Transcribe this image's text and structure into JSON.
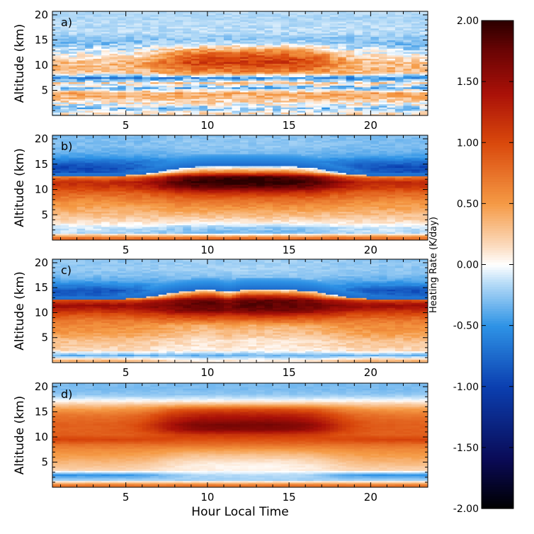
{
  "chart_data": {
    "type": "heatmap",
    "xlabel": "Hour Local Time",
    "ylabel": "Altitude (km)",
    "xlim": [
      0.5,
      23.5
    ],
    "ylim": [
      0,
      20.7
    ],
    "x_ticks": [
      5,
      10,
      15,
      20
    ],
    "y_ticks": [
      5,
      10,
      15,
      20
    ],
    "panels": [
      {
        "label": "a)",
        "layers": [
          {
            "alt": 0.5,
            "base": 0.08,
            "day": 0.0,
            "noise": 0.25
          },
          {
            "alt": 1.5,
            "base": -0.25,
            "day": 0.0,
            "noise": 0.25
          },
          {
            "alt": 2.5,
            "base": 0.05,
            "day": 0.05,
            "noise": 0.25
          },
          {
            "alt": 3.5,
            "base": 0.3,
            "day": 0.0,
            "noise": 0.2
          },
          {
            "alt": 4.5,
            "base": 0.45,
            "day": 0.0,
            "noise": 0.2
          },
          {
            "alt": 5.5,
            "base": -0.35,
            "day": 0.0,
            "noise": 0.3
          },
          {
            "alt": 6.5,
            "base": 0.15,
            "day": 0.05,
            "noise": 0.3
          },
          {
            "alt": 7.5,
            "base": -0.6,
            "day": 0.1,
            "noise": 0.25
          },
          {
            "alt": 8.5,
            "base": 0.25,
            "day": 0.3,
            "noise": 0.2
          },
          {
            "alt": 9.5,
            "base": 0.3,
            "day": 0.55,
            "noise": 0.2
          },
          {
            "alt": 10.5,
            "base": 0.3,
            "day": 0.8,
            "noise": 0.2
          },
          {
            "alt": 11.5,
            "base": 0.1,
            "day": 0.9,
            "noise": 0.2
          },
          {
            "alt": 12.5,
            "base": -0.05,
            "day": 0.8,
            "noise": 0.2
          },
          {
            "alt": 13.5,
            "base": -0.2,
            "day": 0.45,
            "noise": 0.2
          },
          {
            "alt": 14.5,
            "base": -0.3,
            "day": 0.1,
            "noise": 0.15
          },
          {
            "alt": 15.5,
            "base": -0.25,
            "day": 0.0,
            "noise": 0.1
          },
          {
            "alt": 16.5,
            "base": -0.15,
            "day": 0.0,
            "noise": 0.08
          },
          {
            "alt": 17.5,
            "base": -0.15,
            "day": 0.0,
            "noise": 0.08
          },
          {
            "alt": 18.5,
            "base": -0.15,
            "day": 0.0,
            "noise": 0.06
          },
          {
            "alt": 19.5,
            "base": -0.18,
            "day": 0.0,
            "noise": 0.06
          },
          {
            "alt": 20.5,
            "base": -0.15,
            "day": 0.0,
            "noise": 0.05
          }
        ]
      },
      {
        "label": "b)",
        "layers": [
          {
            "alt": 0.5,
            "base": 0.75,
            "day": 0.0,
            "noise": 0.05
          },
          {
            "alt": 1.5,
            "base": -0.15,
            "day": -0.15,
            "noise": 0.08
          },
          {
            "alt": 2.5,
            "base": -0.1,
            "day": -0.15,
            "noise": 0.08
          },
          {
            "alt": 3.5,
            "base": 0.1,
            "day": -0.05,
            "noise": 0.08
          },
          {
            "alt": 4.5,
            "base": 0.25,
            "day": 0.0,
            "noise": 0.08
          },
          {
            "alt": 5.5,
            "base": 0.35,
            "day": 0.05,
            "noise": 0.08
          },
          {
            "alt": 6.5,
            "base": 0.45,
            "day": 0.1,
            "noise": 0.08
          },
          {
            "alt": 7.5,
            "base": 0.55,
            "day": 0.15,
            "noise": 0.08
          },
          {
            "alt": 8.5,
            "base": 0.7,
            "day": 0.2,
            "noise": 0.08
          },
          {
            "alt": 9.5,
            "base": 0.85,
            "day": 0.4,
            "noise": 0.08
          },
          {
            "alt": 10.5,
            "base": 1.1,
            "day": 0.7,
            "noise": 0.08
          },
          {
            "alt": 11.5,
            "base": 1.2,
            "day": 0.85,
            "noise": 0.08
          },
          {
            "alt": 12.5,
            "base": 0.7,
            "day": 1.2,
            "noise": 0.08
          },
          {
            "alt": 13.5,
            "base": -0.9,
            "day": 1.6,
            "noise": 0.08
          },
          {
            "alt": 14.5,
            "base": -0.95,
            "day": 0.9,
            "noise": 0.08
          },
          {
            "alt": 15.5,
            "base": -0.7,
            "day": 0.2,
            "noise": 0.06
          },
          {
            "alt": 16.5,
            "base": -0.45,
            "day": 0.1,
            "noise": 0.05
          },
          {
            "alt": 17.5,
            "base": -0.35,
            "day": 0.05,
            "noise": 0.05
          },
          {
            "alt": 18.5,
            "base": -0.3,
            "day": 0.05,
            "noise": 0.05
          },
          {
            "alt": 19.5,
            "base": -0.3,
            "day": 0.05,
            "noise": 0.05
          },
          {
            "alt": 20.5,
            "base": -0.3,
            "day": 0.05,
            "noise": 0.05
          }
        ]
      },
      {
        "label": "c)",
        "layers": [
          {
            "alt": 0.5,
            "base": 0.35,
            "day": -0.3,
            "noise": 0.05
          },
          {
            "alt": 1.5,
            "base": -0.35,
            "day": 0.0,
            "noise": 0.08
          },
          {
            "alt": 2.5,
            "base": 0.15,
            "day": -0.1,
            "noise": 0.08
          },
          {
            "alt": 3.5,
            "base": 0.25,
            "day": -0.15,
            "noise": 0.08
          },
          {
            "alt": 4.5,
            "base": 0.3,
            "day": -0.2,
            "noise": 0.08
          },
          {
            "alt": 5.5,
            "base": 0.45,
            "day": -0.2,
            "noise": 0.08
          },
          {
            "alt": 6.5,
            "base": 0.55,
            "day": -0.25,
            "noise": 0.08
          },
          {
            "alt": 7.5,
            "base": 0.6,
            "day": -0.2,
            "noise": 0.08
          },
          {
            "alt": 8.5,
            "base": 0.7,
            "day": 0.1,
            "noise": 0.08
          },
          {
            "alt": 9.5,
            "base": 0.9,
            "day": 0.3,
            "noise": 0.08
          },
          {
            "alt": 10.5,
            "base": 1.2,
            "day": 0.5,
            "noise": 0.08
          },
          {
            "alt": 11.5,
            "base": 1.5,
            "day": 0.3,
            "noise": 0.08
          },
          {
            "alt": 12.5,
            "base": 1.0,
            "day": 0.8,
            "noise": 0.08
          },
          {
            "alt": 13.5,
            "base": -0.8,
            "day": 1.9,
            "noise": 0.08
          },
          {
            "alt": 14.5,
            "base": -0.9,
            "day": 1.1,
            "noise": 0.08
          },
          {
            "alt": 15.5,
            "base": -0.6,
            "day": 0.3,
            "noise": 0.06
          },
          {
            "alt": 16.5,
            "base": -0.4,
            "day": 0.1,
            "noise": 0.05
          },
          {
            "alt": 17.5,
            "base": -0.3,
            "day": 0.05,
            "noise": 0.05
          },
          {
            "alt": 18.5,
            "base": -0.25,
            "day": 0.05,
            "noise": 0.05
          },
          {
            "alt": 19.5,
            "base": -0.25,
            "day": 0.05,
            "noise": 0.05
          },
          {
            "alt": 20.5,
            "base": -0.25,
            "day": 0.05,
            "noise": 0.05
          }
        ]
      },
      {
        "label": "d)",
        "layers": [
          {
            "alt": 0.5,
            "base": 0.7,
            "day": 0.0,
            "noise": 0.03
          },
          {
            "alt": 1.5,
            "base": -0.2,
            "day": 0.0,
            "noise": 0.03
          },
          {
            "alt": 2.5,
            "base": -0.5,
            "day": 0.35,
            "noise": 0.03
          },
          {
            "alt": 3.5,
            "base": 0.2,
            "day": -0.15,
            "noise": 0.03
          },
          {
            "alt": 4.5,
            "base": 0.3,
            "day": -0.25,
            "noise": 0.03
          },
          {
            "alt": 5.5,
            "base": 0.4,
            "day": -0.25,
            "noise": 0.03
          },
          {
            "alt": 6.5,
            "base": 0.5,
            "day": -0.2,
            "noise": 0.03
          },
          {
            "alt": 7.5,
            "base": 0.6,
            "day": -0.1,
            "noise": 0.03
          },
          {
            "alt": 8.5,
            "base": 0.75,
            "day": 0.0,
            "noise": 0.03
          },
          {
            "alt": 9.5,
            "base": 1.05,
            "day": -0.1,
            "noise": 0.03
          },
          {
            "alt": 10.5,
            "base": 0.85,
            "day": 0.3,
            "noise": 0.03
          },
          {
            "alt": 11.5,
            "base": 0.85,
            "day": 0.75,
            "noise": 0.03
          },
          {
            "alt": 12.5,
            "base": 0.85,
            "day": 0.85,
            "noise": 0.03
          },
          {
            "alt": 13.5,
            "base": 0.8,
            "day": 0.7,
            "noise": 0.03
          },
          {
            "alt": 14.5,
            "base": 0.7,
            "day": 0.6,
            "noise": 0.03
          },
          {
            "alt": 15.5,
            "base": 0.5,
            "day": 0.5,
            "noise": 0.03
          },
          {
            "alt": 16.5,
            "base": 0.25,
            "day": 0.1,
            "noise": 0.03
          },
          {
            "alt": 17.5,
            "base": -0.05,
            "day": 0.0,
            "noise": 0.03
          },
          {
            "alt": 18.5,
            "base": -0.25,
            "day": 0.0,
            "noise": 0.03
          },
          {
            "alt": 19.5,
            "base": -0.3,
            "day": 0.0,
            "noise": 0.03
          },
          {
            "alt": 20.5,
            "base": -0.3,
            "day": 0.0,
            "noise": 0.03
          }
        ]
      }
    ],
    "colorbar": {
      "label": "Heating Rate  (K/day)",
      "range": [
        -2.0,
        2.0
      ],
      "ticks": [
        "2.00",
        "1.50",
        "1.00",
        "0.50",
        "0.00",
        "-0.50",
        "-1.00",
        "-1.50",
        "-2.00"
      ],
      "colors": {
        "-2.0": "#000000",
        "-1.6": "#0a0a55",
        "-1.0": "#0b3fb0",
        "-0.5": "#2e93e6",
        "-0.15": "#b8dcf7",
        "0.0": "#ffffff",
        "0.15": "#fbdcc0",
        "0.5": "#f59a45",
        "1.0": "#d9480c",
        "1.4": "#aa1108",
        "1.75": "#6b0404",
        "2.0": "#2b0000"
      }
    }
  }
}
